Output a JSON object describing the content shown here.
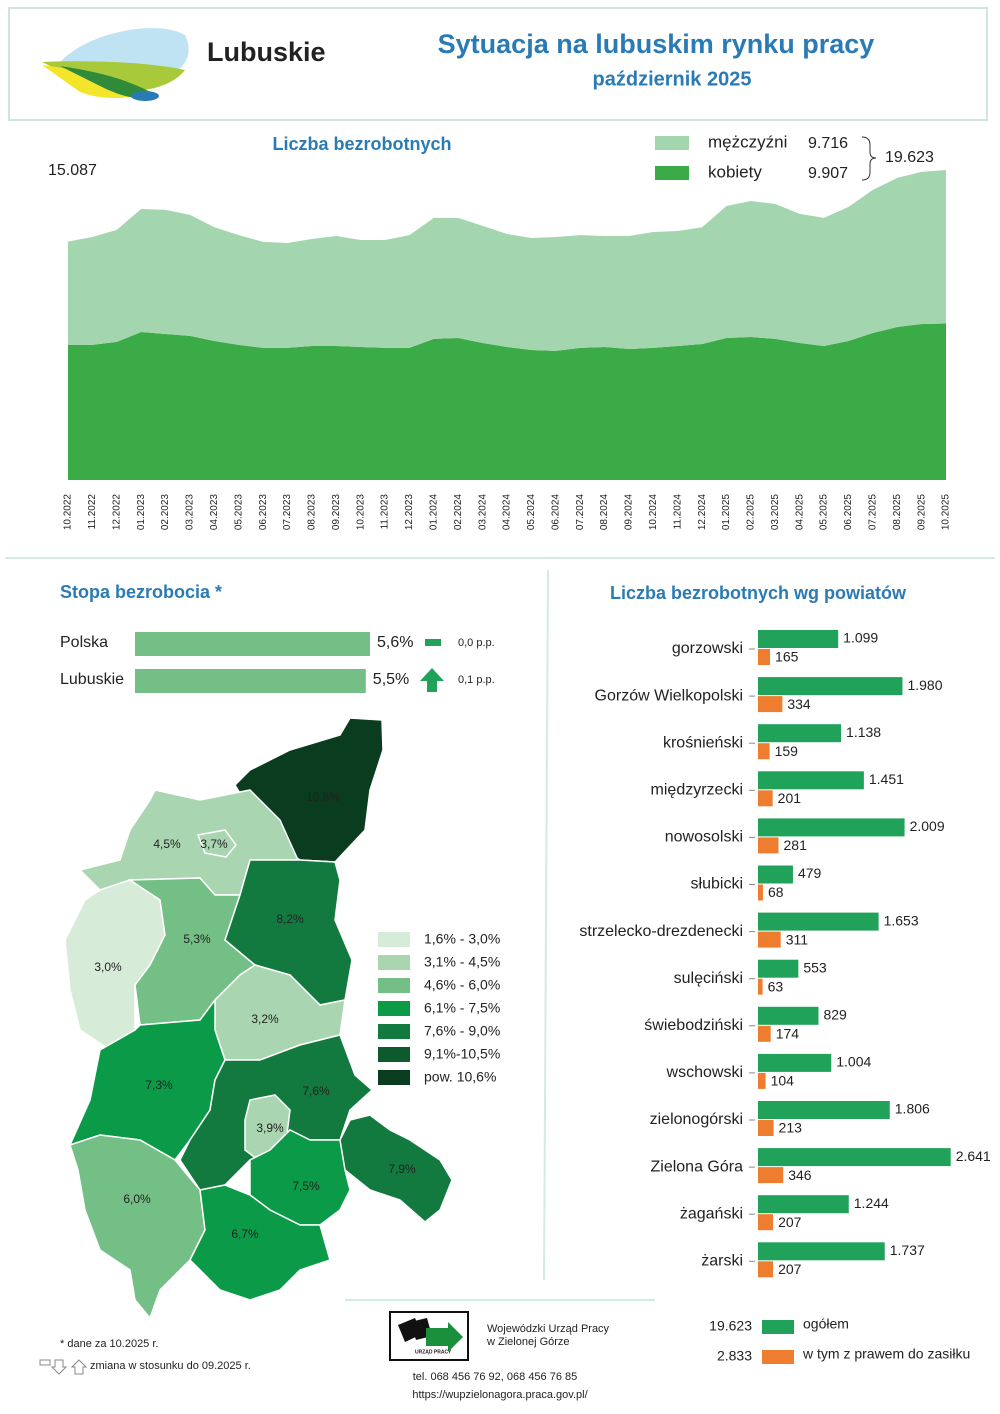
{
  "header": {
    "brand": "Lubuskie",
    "title": "Sytuacja na lubuskim rynku pracy",
    "subtitle": "październik 2025"
  },
  "chart_data": [
    {
      "type": "area",
      "title": "Liczba bezrobotnych",
      "categories": [
        "10.2022",
        "11.2022",
        "12.2022",
        "01.2023",
        "02.2023",
        "03.2023",
        "04.2023",
        "05.2023",
        "06.2023",
        "07.2023",
        "08.2023",
        "09.2023",
        "10.2023",
        "11.2023",
        "12.2023",
        "01.2024",
        "02.2024",
        "03.2024",
        "04.2024",
        "05.2024",
        "06.2024",
        "07.2024",
        "08.2024",
        "09.2024",
        "10.2024",
        "11.2024",
        "12.2024",
        "01.2025",
        "02.2025",
        "03.2025",
        "04.2025",
        "05.2025",
        "06.2025",
        "07.2025",
        "08.2025",
        "09.2025",
        "10.2025"
      ],
      "series": [
        {
          "name": "mężczyźni",
          "color": "#a3d5ae",
          "last_label": "9.716",
          "values": [
            6537,
            6830,
            7090,
            7780,
            7860,
            7660,
            7200,
            6950,
            6710,
            6640,
            6770,
            6960,
            6770,
            6830,
            7140,
            7660,
            7600,
            7410,
            7150,
            7090,
            7210,
            7140,
            7020,
            7150,
            7340,
            7280,
            7390,
            8350,
            8610,
            8540,
            8170,
            8110,
            8480,
            9060,
            9440,
            9630,
            9716
          ]
        },
        {
          "name": "kobiety",
          "color": "#3aab47",
          "last_label": "9.907",
          "values": [
            8550,
            8550,
            8740,
            9370,
            9240,
            9120,
            8800,
            8550,
            8360,
            8360,
            8480,
            8480,
            8420,
            8360,
            8360,
            8930,
            8990,
            8670,
            8420,
            8230,
            8170,
            8360,
            8420,
            8290,
            8360,
            8480,
            8610,
            8990,
            9050,
            8930,
            8670,
            8480,
            8800,
            9300,
            9680,
            9870,
            9907
          ]
        }
      ],
      "start_total": {
        "value": 15087,
        "label": "15.087"
      },
      "end_total": {
        "value": 19623,
        "label": "19.623"
      },
      "ylim": [
        0,
        20000
      ],
      "stacked": true
    },
    {
      "type": "bar",
      "horizontal": true,
      "title": "Stopa bezrobocia *",
      "categories": [
        "Polska",
        "Lubuskie"
      ],
      "values": [
        5.6,
        5.5
      ],
      "value_labels": [
        "5,6%",
        "5,5%"
      ],
      "change_labels": [
        "0,0 p.p.",
        "0,1 p.p."
      ],
      "color": "#74bf85",
      "xlim": [
        0,
        5.6
      ]
    },
    {
      "type": "bar",
      "horizontal": true,
      "title": "Liczba bezrobotnych wg powiatów",
      "categories": [
        "gorzowski",
        "Gorzów Wielkopolski",
        "krośnieński",
        "międzyrzecki",
        "nowosolski",
        "słubicki",
        "strzelecko-drezdenecki",
        "sulęciński",
        "świebodziński",
        "wschowski",
        "zielonogórski",
        "Zielona Góra",
        "żagański",
        "żarski"
      ],
      "series": [
        {
          "name": "ogółem",
          "color": "#21a25a",
          "total": {
            "value": 19623,
            "label": "19.623"
          },
          "values": [
            1099,
            1980,
            1138,
            1451,
            2009,
            479,
            1653,
            553,
            829,
            1004,
            1806,
            2641,
            1244,
            1737
          ],
          "value_labels": [
            "1.099",
            "1.980",
            "1.138",
            "1.451",
            "2.009",
            "479",
            "1.653",
            "553",
            "829",
            "1.004",
            "1.806",
            "2.641",
            "1.244",
            "1.737"
          ]
        },
        {
          "name": "w tym z prawem do zasiłku",
          "color": "#ee7d2f",
          "total": {
            "value": 2833,
            "label": "2.833"
          },
          "values": [
            165,
            334,
            159,
            201,
            281,
            68,
            311,
            63,
            174,
            104,
            213,
            346,
            207,
            207
          ],
          "value_labels": [
            "165",
            "334",
            "159",
            "201",
            "281",
            "68",
            "311",
            "63",
            "174",
            "104",
            "213",
            "346",
            "207",
            "207"
          ]
        }
      ],
      "xlim": [
        0,
        2700
      ]
    }
  ],
  "map": {
    "regions": [
      {
        "label": "10,8%",
        "color": "#0a3d1f"
      },
      {
        "label": "4,5%",
        "color": "#a9d6b0"
      },
      {
        "label": "3,7%",
        "color": "#a9d6b0"
      },
      {
        "label": "3,0%",
        "color": "#d6ebd8"
      },
      {
        "label": "5,3%",
        "color": "#74bf85"
      },
      {
        "label": "8,2%",
        "color": "#137a3f"
      },
      {
        "label": "3,2%",
        "color": "#a9d6b0"
      },
      {
        "label": "7,3%",
        "color": "#0a9a48"
      },
      {
        "label": "7,6%",
        "color": "#137a3f"
      },
      {
        "label": "3,9%",
        "color": "#a9d6b0"
      },
      {
        "label": "7,9%",
        "color": "#137a3f"
      },
      {
        "label": "7,5%",
        "color": "#0a9a48"
      },
      {
        "label": "6,0%",
        "color": "#74bf85"
      },
      {
        "label": "6,7%",
        "color": "#0a9a48"
      }
    ],
    "legend": [
      {
        "label": "1,6% - 3,0%",
        "color": "#d6ebd8"
      },
      {
        "label": "3,1% - 4,5%",
        "color": "#a9d6b0"
      },
      {
        "label": "4,6% - 6,0%",
        "color": "#74bf85"
      },
      {
        "label": "6,1% - 7,5%",
        "color": "#0a9a48"
      },
      {
        "label": "7,6% - 9,0%",
        "color": "#137a3f"
      },
      {
        "label": "9,1%-10,5%",
        "color": "#0d5a2e"
      },
      {
        "label": "pow. 10,6%",
        "color": "#0a3d1f"
      }
    ]
  },
  "notes": {
    "data_date": "* dane za 10.2025 r.",
    "change": "zmiana w stosunku do 09.2025 r."
  },
  "footer": {
    "org_line1": "Wojewódzki Urząd Pracy",
    "org_line2": "w Zielonej Górze",
    "logo_text": "URZĄD PRACY",
    "phone": "tel. 068 456 76 92,  068 456 76 85",
    "url": "https://wupzielonagora.praca.gov.pl/"
  }
}
